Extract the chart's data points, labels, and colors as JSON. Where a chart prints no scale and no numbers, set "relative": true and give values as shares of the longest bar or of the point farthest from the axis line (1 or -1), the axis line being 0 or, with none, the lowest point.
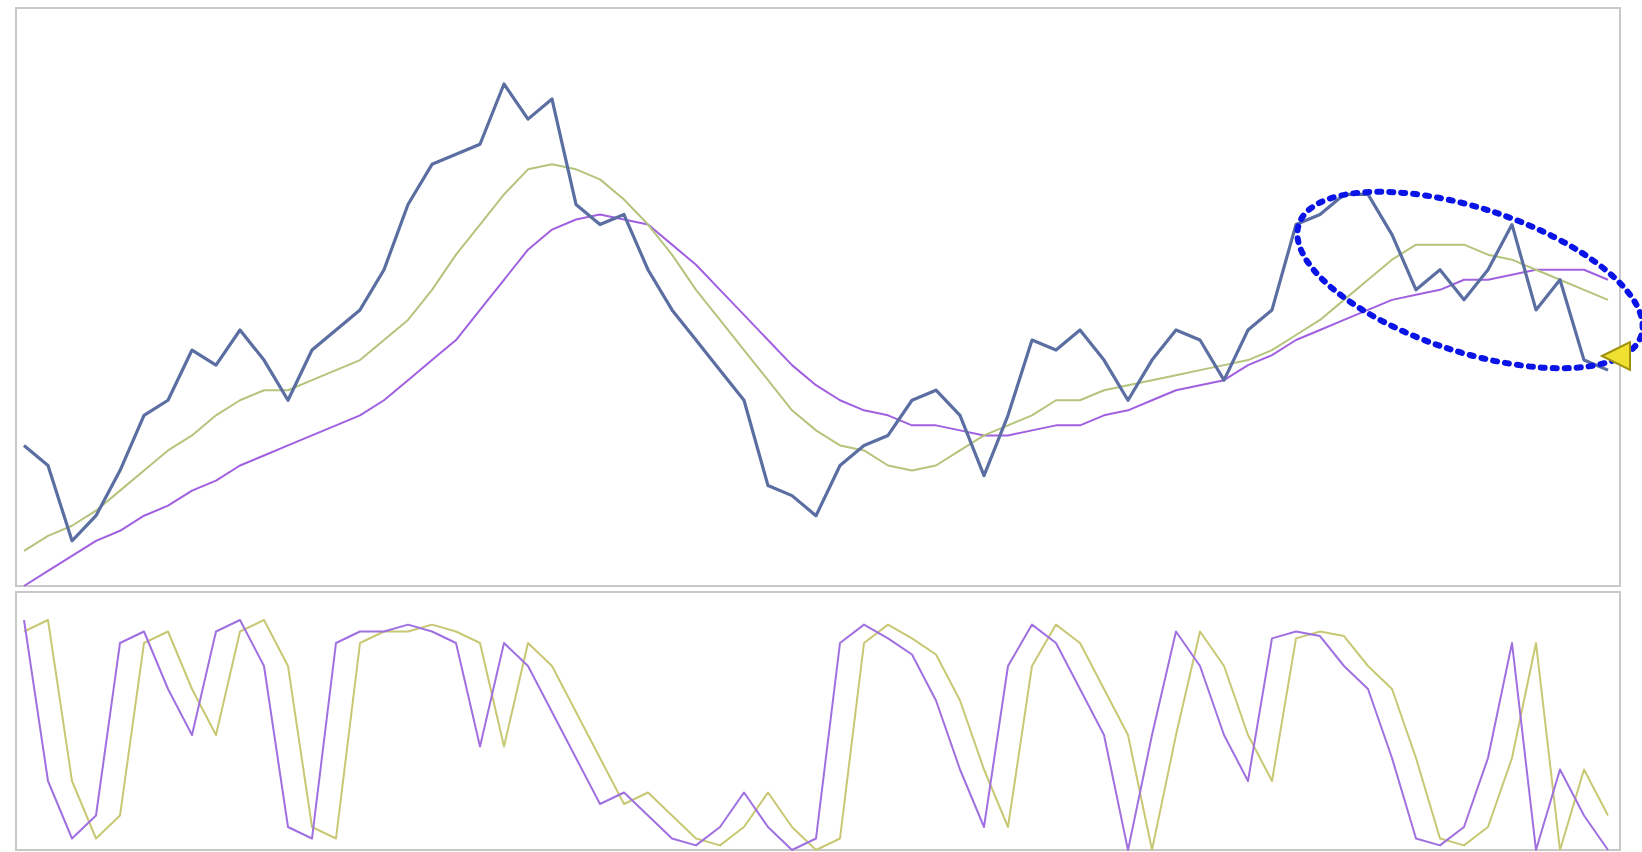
{
  "chart_data": [
    {
      "type": "line",
      "relative": true,
      "grid": false,
      "marker": "none",
      "line_style": "solid",
      "categories": [
        null,
        null,
        null,
        null,
        null,
        null,
        null,
        null,
        null,
        null,
        null,
        null,
        null,
        null,
        null,
        null,
        null,
        null,
        null,
        null,
        null,
        null,
        null,
        null,
        null,
        null,
        null,
        null,
        null,
        null,
        null,
        null,
        null,
        null,
        null,
        null,
        null,
        null,
        null,
        null,
        null,
        null,
        null,
        null,
        null,
        null,
        null,
        null,
        null,
        null,
        null,
        null,
        null,
        null,
        null,
        null,
        null,
        null,
        null,
        null,
        null,
        null,
        null,
        null,
        null,
        null,
        null
      ],
      "series": [
        {
          "color": "#a060e0",
          "values": [
            0,
            0.03,
            0.06,
            0.09,
            0.11,
            0.14,
            0.16,
            0.19,
            0.21,
            0.24,
            0.26,
            0.28,
            0.3,
            0.32,
            0.34,
            0.37,
            0.41,
            0.45,
            0.49,
            0.55,
            0.61,
            0.67,
            0.71,
            0.73,
            0.74,
            0.73,
            0.72,
            0.68,
            0.64,
            0.59,
            0.54,
            0.49,
            0.44,
            0.4,
            0.37,
            0.35,
            0.34,
            0.32,
            0.32,
            0.31,
            0.3,
            0.3,
            0.31,
            0.32,
            0.32,
            0.34,
            0.35,
            0.37,
            0.39,
            0.4,
            0.41,
            0.44,
            0.46,
            0.49,
            0.51,
            0.53,
            0.55,
            0.57,
            0.58,
            0.59,
            0.61,
            0.61,
            0.62,
            0.63,
            0.63,
            0.63,
            0.61
          ]
        },
        {
          "color": "#b4c47c",
          "values": [
            0.07,
            0.1,
            0.12,
            0.15,
            0.19,
            0.23,
            0.27,
            0.3,
            0.34,
            0.37,
            0.39,
            0.39,
            0.41,
            0.43,
            0.45,
            0.49,
            0.53,
            0.59,
            0.66,
            0.72,
            0.78,
            0.83,
            0.84,
            0.83,
            0.81,
            0.77,
            0.72,
            0.66,
            0.59,
            0.53,
            0.47,
            0.41,
            0.35,
            0.31,
            0.28,
            0.27,
            0.24,
            0.23,
            0.24,
            0.27,
            0.3,
            0.32,
            0.34,
            0.37,
            0.37,
            0.39,
            0.4,
            0.41,
            0.42,
            0.43,
            0.44,
            0.45,
            0.47,
            0.5,
            0.53,
            0.57,
            0.61,
            0.65,
            0.68,
            0.68,
            0.68,
            0.66,
            0.65,
            0.63,
            0.61,
            0.59,
            0.57
          ]
        },
        {
          "color": "#5a6ea2",
          "values": [
            0.28,
            0.24,
            0.09,
            0.14,
            0.23,
            0.34,
            0.37,
            0.47,
            0.44,
            0.51,
            0.45,
            0.37,
            0.47,
            0.51,
            0.55,
            0.63,
            0.76,
            0.84,
            0.86,
            0.88,
            1,
            0.93,
            0.97,
            0.76,
            0.72,
            0.74,
            0.63,
            0.55,
            0.49,
            0.43,
            0.37,
            0.2,
            0.18,
            0.14,
            0.24,
            0.28,
            0.3,
            0.37,
            0.39,
            0.34,
            0.22,
            0.34,
            0.49,
            0.47,
            0.51,
            0.45,
            0.37,
            0.45,
            0.51,
            0.49,
            0.41,
            0.51,
            0.55,
            0.72,
            0.74,
            0.78,
            0.78,
            0.7,
            0.59,
            0.63,
            0.57,
            0.63,
            0.72,
            0.55,
            0.61,
            0.45,
            0.43
          ]
        }
      ]
    },
    {
      "type": "line",
      "relative": true,
      "grid": false,
      "marker": "none",
      "line_style": "solid",
      "categories": [
        null,
        null,
        null,
        null,
        null,
        null,
        null,
        null,
        null,
        null,
        null,
        null,
        null,
        null,
        null,
        null,
        null,
        null,
        null,
        null,
        null,
        null,
        null,
        null,
        null,
        null,
        null,
        null,
        null,
        null,
        null,
        null,
        null,
        null,
        null,
        null,
        null,
        null,
        null,
        null,
        null,
        null,
        null,
        null,
        null,
        null,
        null,
        null,
        null,
        null,
        null,
        null,
        null,
        null,
        null,
        null,
        null,
        null,
        null,
        null,
        null,
        null,
        null,
        null,
        null,
        null,
        null
      ],
      "series": [
        {
          "color": "#c8c874",
          "values": [
            0.95,
            1,
            0.3,
            0.05,
            0.15,
            0.9,
            0.95,
            0.7,
            0.5,
            0.95,
            1,
            0.8,
            0.1,
            0.05,
            0.9,
            0.95,
            0.95,
            0.98,
            0.95,
            0.9,
            0.45,
            0.9,
            0.8,
            0.6,
            0.4,
            0.2,
            0.25,
            0.15,
            0.05,
            0.02,
            0.1,
            0.25,
            0.1,
            0,
            0.05,
            0.9,
            0.98,
            0.92,
            0.85,
            0.65,
            0.35,
            0.1,
            0.8,
            0.98,
            0.9,
            0.7,
            0.5,
            0,
            0.5,
            0.95,
            0.8,
            0.5,
            0.3,
            0.92,
            0.95,
            0.93,
            0.8,
            0.7,
            0.4,
            0.05,
            0.02,
            0.1,
            0.4,
            0.9,
            0,
            0.35,
            0.15
          ]
        },
        {
          "color": "#a070e0",
          "values": [
            1,
            0.3,
            0.05,
            0.15,
            0.9,
            0.95,
            0.7,
            0.5,
            0.95,
            1,
            0.8,
            0.1,
            0.05,
            0.9,
            0.95,
            0.95,
            0.98,
            0.95,
            0.9,
            0.45,
            0.9,
            0.8,
            0.6,
            0.4,
            0.2,
            0.25,
            0.15,
            0.05,
            0.02,
            0.1,
            0.25,
            0.1,
            0,
            0.05,
            0.9,
            0.98,
            0.92,
            0.85,
            0.65,
            0.35,
            0.1,
            0.8,
            0.98,
            0.9,
            0.7,
            0.5,
            0,
            0.5,
            0.95,
            0.8,
            0.5,
            0.3,
            0.92,
            0.95,
            0.93,
            0.8,
            0.7,
            0.4,
            0.05,
            0.02,
            0.1,
            0.4,
            0.9,
            0,
            0.35,
            0.15,
            0
          ]
        }
      ]
    }
  ]
}
